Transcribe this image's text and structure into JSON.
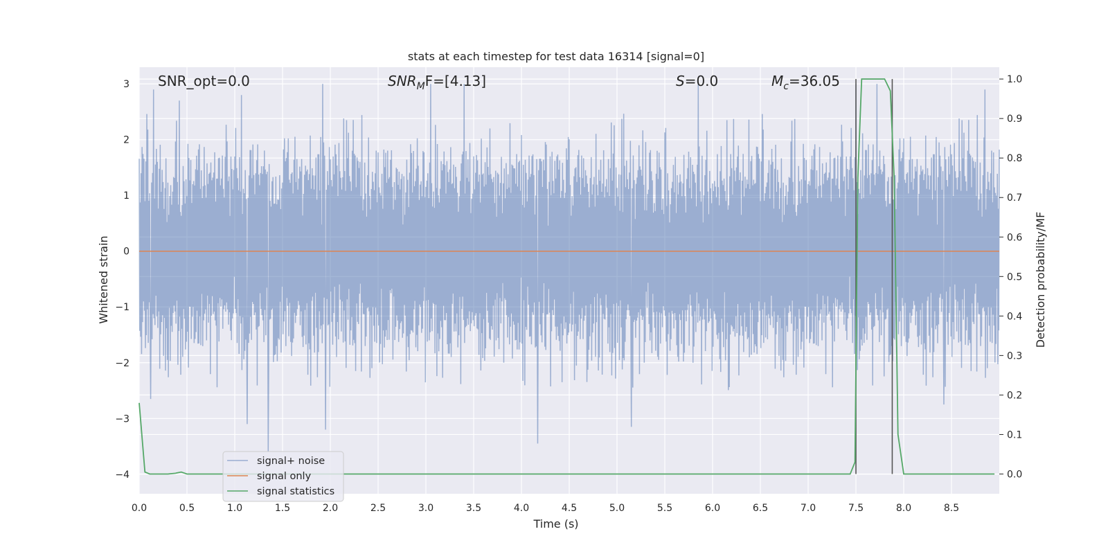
{
  "chart_data": {
    "type": "line",
    "title": "stats at each timestep for test data 16314 [signal=0]",
    "xlabel": "Time (s)",
    "ylabel": "Whitened strain",
    "ylabel_right": "Detection probability/MF",
    "xlim": [
      0,
      9.0
    ],
    "ylim": [
      -4.35,
      3.3
    ],
    "ylim_right": [
      -0.05,
      1.03
    ],
    "x_ticks": [
      "0.0",
      "0.5",
      "1.0",
      "1.5",
      "2.0",
      "2.5",
      "3.0",
      "3.5",
      "4.0",
      "4.5",
      "5.0",
      "5.5",
      "6.0",
      "6.5",
      "7.0",
      "7.5",
      "8.0",
      "8.5"
    ],
    "y_ticks": [
      "3",
      "2",
      "1",
      "0",
      "−1",
      "−2",
      "−3",
      "−4"
    ],
    "y_right_ticks": [
      "1.0",
      "0.9",
      "0.8",
      "0.7",
      "0.6",
      "0.5",
      "0.4",
      "0.3",
      "0.2",
      "0.1",
      "0.0"
    ],
    "grid": true,
    "legend_position": "lower-left",
    "annotations": [
      {
        "prefix": "SNR_opt=0.0",
        "italic": "",
        "sub": "",
        "suffix": ""
      },
      {
        "prefix": "",
        "italic": "SNR",
        "sub": "M",
        "suffix": "F=[4.13]"
      },
      {
        "prefix": "",
        "italic": "S",
        "sub": "",
        "suffix": "=0.0"
      },
      {
        "prefix": "",
        "italic": "M",
        "sub": "c",
        "suffix": "=36.05"
      }
    ],
    "vertical_lines_x": [
      7.5,
      7.88
    ],
    "series": [
      {
        "name": "signal+ noise",
        "color": "#4c72b0",
        "opacity": 0.5,
        "x_range": [
          0,
          9.0
        ],
        "num_samples": 1800,
        "spike_peaks": [
          {
            "x": 0.15,
            "y": 2.9
          },
          {
            "x": 0.42,
            "y": 2.7
          },
          {
            "x": 1.07,
            "y": 2.8
          },
          {
            "x": 1.35,
            "y": -3.6
          },
          {
            "x": 1.92,
            "y": 3.0
          },
          {
            "x": 1.95,
            "y": -3.2
          },
          {
            "x": 1.13,
            "y": -3.1
          },
          {
            "x": 3.05,
            "y": 3.0
          },
          {
            "x": 3.4,
            "y": 3.0
          },
          {
            "x": 4.17,
            "y": -3.45
          },
          {
            "x": 5.15,
            "y": -3.15
          },
          {
            "x": 5.85,
            "y": 3.0
          },
          {
            "x": 7.5,
            "y": 3.0
          },
          {
            "x": 7.72,
            "y": 3.0
          },
          {
            "x": 8.85,
            "y": 2.9
          },
          {
            "x": 8.42,
            "y": -2.75
          },
          {
            "x": 0.12,
            "y": -2.65
          }
        ]
      },
      {
        "name": "signal only",
        "color": "#dd8452",
        "x": [
          0,
          9.0
        ],
        "y": [
          0,
          0
        ]
      },
      {
        "name": "signal statistics",
        "color": "#55a868",
        "axis": "right",
        "x": [
          0.0,
          0.06,
          0.11,
          0.2,
          0.3,
          0.38,
          0.44,
          0.5,
          1.0,
          2.0,
          3.0,
          4.0,
          5.0,
          6.0,
          7.0,
          7.44,
          7.49,
          7.52,
          7.56,
          7.62,
          7.7,
          7.8,
          7.86,
          7.9,
          7.94,
          8.0,
          8.5,
          8.95
        ],
        "y": [
          0.18,
          0.005,
          0.0,
          0.0,
          0.0,
          0.002,
          0.005,
          0.0,
          0.0,
          0.0,
          0.0,
          0.0,
          0.0,
          0.0,
          0.0,
          0.0,
          0.03,
          0.75,
          1.0,
          1.0,
          1.0,
          1.0,
          0.97,
          0.75,
          0.1,
          0.0,
          0.0,
          0.0
        ]
      }
    ]
  }
}
